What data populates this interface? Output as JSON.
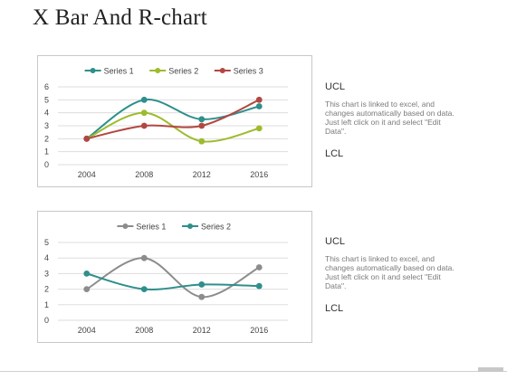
{
  "title": "X Bar And R-chart",
  "colors": {
    "teal": "#2e8f8c",
    "green": "#9dbb2d",
    "red": "#b24742",
    "gray": "#8c8c8c",
    "grid": "#dddddd",
    "tick": "#444444"
  },
  "chart_data": [
    {
      "type": "line",
      "smooth": true,
      "title": "",
      "xlabel": "",
      "ylabel": "",
      "categories": [
        "2004",
        "2008",
        "2012",
        "2016"
      ],
      "ylim": [
        0,
        6
      ],
      "yticks": [
        0,
        1,
        2,
        3,
        4,
        5,
        6
      ],
      "grid": true,
      "legend": "top",
      "series": [
        {
          "name": "Series 1",
          "color": "#2e8f8c",
          "values": [
            2,
            5,
            3.5,
            4.5
          ]
        },
        {
          "name": "Series 2",
          "color": "#9dbb2d",
          "values": [
            2,
            4,
            1.8,
            2.8
          ]
        },
        {
          "name": "Series 3",
          "color": "#b24742",
          "values": [
            2,
            3,
            3,
            5
          ]
        }
      ]
    },
    {
      "type": "line",
      "smooth": true,
      "title": "",
      "xlabel": "",
      "ylabel": "",
      "categories": [
        "2004",
        "2008",
        "2012",
        "2016"
      ],
      "ylim": [
        0,
        5
      ],
      "yticks": [
        0,
        1,
        2,
        3,
        4,
        5
      ],
      "grid": true,
      "legend": "top",
      "series": [
        {
          "name": "Series 1",
          "color": "#8c8c8c",
          "values": [
            2,
            4,
            1.5,
            3.4
          ]
        },
        {
          "name": "Series 2",
          "color": "#2e8f8c",
          "values": [
            3,
            2,
            2.3,
            2.2
          ]
        }
      ]
    }
  ],
  "panels": [
    {
      "ucl": "UCL",
      "description": "This chart is linked to excel, and changes automatically based on data. Just left click on it and select \"Edit Data\".",
      "lcl": "LCL"
    },
    {
      "ucl": "UCL",
      "description": "This chart is linked to excel, and changes automatically based on data. Just left click on it and select \"Edit Data\".",
      "lcl": "LCL"
    }
  ]
}
